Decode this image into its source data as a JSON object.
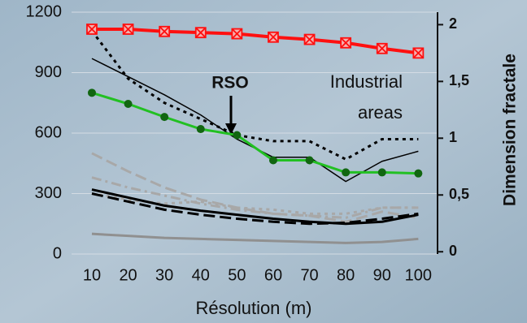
{
  "chart_data": {
    "type": "line",
    "x_label": "Résolution (m)",
    "y2_label": "Dimension fractale",
    "annotations": {
      "arrow_text": "RSO",
      "area_lines": [
        "Industrial",
        "areas"
      ]
    },
    "x": [
      10,
      20,
      30,
      40,
      50,
      60,
      70,
      80,
      90,
      100
    ],
    "xlim": [
      4.4,
      105.3
    ],
    "xticks": [
      10,
      20,
      30,
      40,
      50,
      60,
      70,
      80,
      90,
      100
    ],
    "ylim": [
      0,
      1200
    ],
    "yticks": [
      0,
      300,
      600,
      900,
      1200
    ],
    "y2lim": [
      -0.02,
      2.11
    ],
    "y2ticks": [
      0,
      {
        "value": 0.5,
        "label": "0,5"
      },
      1,
      {
        "value": 1.5,
        "label": "1,5"
      },
      2
    ],
    "grid": true,
    "series": [
      {
        "color": "#909090",
        "dash": "solid",
        "width": 3,
        "values": [
          100,
          90,
          80,
          75,
          70,
          65,
          60,
          55,
          60,
          75
        ]
      },
      {
        "color": "#a8a8a8",
        "dash": "dashed",
        "width": 3,
        "values": [
          500,
          410,
          330,
          270,
          230,
          200,
          190,
          160,
          210,
          180
        ]
      },
      {
        "color": "#a8a8a8",
        "dash": "dashdot",
        "width": 3,
        "values": [
          380,
          330,
          290,
          250,
          220,
          200,
          190,
          180,
          230,
          230
        ]
      },
      {
        "color": "#a8a8a8",
        "dash": "dotted",
        "width": 3,
        "values": [
          300,
          270,
          250,
          260,
          230,
          220,
          200,
          200,
          230,
          230
        ]
      },
      {
        "color": "#000000",
        "dash": "solid",
        "width": 3,
        "values": [
          320,
          280,
          240,
          215,
          195,
          175,
          160,
          150,
          160,
          195
        ]
      },
      {
        "color": "#000000",
        "dash": "dashed",
        "width": 3,
        "values": [
          300,
          260,
          220,
          195,
          175,
          160,
          150,
          155,
          175,
          200
        ]
      },
      {
        "color": "#000000",
        "dash": "solid",
        "width": 1.5,
        "values": [
          970,
          880,
          790,
          690,
          570,
          480,
          480,
          360,
          460,
          510
        ]
      },
      {
        "color": "#000000",
        "dash": "dotted",
        "width": 3,
        "values": [
          1107,
          870,
          750,
          670,
          590,
          560,
          560,
          470,
          570,
          570
        ]
      },
      {
        "color": "#22c022",
        "dash": "solid",
        "width": 3,
        "marker": "circle",
        "marker_color": "#116611",
        "values": [
          800,
          745,
          680,
          620,
          590,
          465,
          465,
          405,
          405,
          400
        ]
      },
      {
        "color": "#ff1010",
        "dash": "solid",
        "width": 4,
        "marker": "square-x",
        "marker_color": "#ff1010",
        "axis": "y2",
        "values": [
          1.96,
          1.96,
          1.94,
          1.93,
          1.92,
          1.89,
          1.87,
          1.84,
          1.79,
          1.75
        ]
      }
    ]
  }
}
